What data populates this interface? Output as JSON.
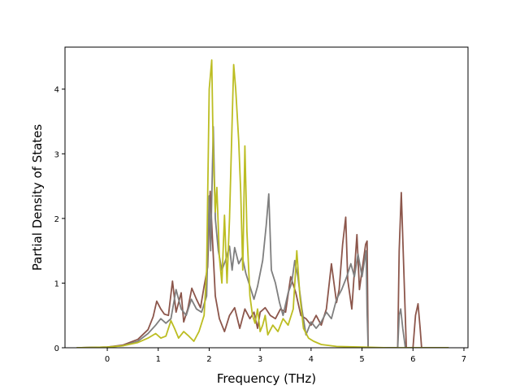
{
  "chart_data": {
    "type": "line",
    "title": "",
    "xlabel": "Frequency (THz)",
    "ylabel": "Partial Density of States",
    "xlim": [
      -0.83,
      7.08
    ],
    "ylim": [
      0,
      4.65
    ],
    "xticks": [
      0,
      1,
      2,
      3,
      4,
      5,
      6,
      7
    ],
    "yticks": [
      0,
      1,
      2,
      3,
      4
    ],
    "grid": false,
    "legend": "none",
    "series": [
      {
        "color": "#8c564b",
        "points": [
          [
            -0.6,
            0
          ],
          [
            0,
            0.01
          ],
          [
            0.3,
            0.04
          ],
          [
            0.6,
            0.13
          ],
          [
            0.8,
            0.28
          ],
          [
            0.9,
            0.48
          ],
          [
            0.97,
            0.72
          ],
          [
            1.05,
            0.6
          ],
          [
            1.12,
            0.52
          ],
          [
            1.2,
            0.5
          ],
          [
            1.28,
            1.03
          ],
          [
            1.35,
            0.55
          ],
          [
            1.45,
            0.85
          ],
          [
            1.5,
            0.4
          ],
          [
            1.58,
            0.6
          ],
          [
            1.66,
            0.92
          ],
          [
            1.75,
            0.75
          ],
          [
            1.83,
            0.62
          ],
          [
            1.9,
            0.95
          ],
          [
            1.97,
            1.25
          ],
          [
            2.02,
            2.42
          ],
          [
            2.07,
            1.6
          ],
          [
            2.12,
            0.8
          ],
          [
            2.2,
            0.45
          ],
          [
            2.3,
            0.25
          ],
          [
            2.4,
            0.5
          ],
          [
            2.5,
            0.62
          ],
          [
            2.6,
            0.3
          ],
          [
            2.7,
            0.6
          ],
          [
            2.8,
            0.45
          ],
          [
            2.88,
            0.55
          ],
          [
            2.95,
            0.3
          ],
          [
            3.0,
            0.55
          ],
          [
            3.1,
            0.62
          ],
          [
            3.2,
            0.5
          ],
          [
            3.3,
            0.45
          ],
          [
            3.4,
            0.6
          ],
          [
            3.5,
            0.55
          ],
          [
            3.6,
            1.1
          ],
          [
            3.7,
            0.85
          ],
          [
            3.8,
            0.5
          ],
          [
            3.9,
            0.45
          ],
          [
            4.0,
            0.35
          ],
          [
            4.1,
            0.5
          ],
          [
            4.2,
            0.35
          ],
          [
            4.3,
            0.6
          ],
          [
            4.4,
            1.3
          ],
          [
            4.5,
            0.7
          ],
          [
            4.55,
            0.9
          ],
          [
            4.62,
            1.6
          ],
          [
            4.68,
            2.02
          ],
          [
            4.72,
            1.05
          ],
          [
            4.8,
            0.6
          ],
          [
            4.9,
            1.75
          ],
          [
            4.95,
            0.9
          ],
          [
            5.0,
            1.2
          ],
          [
            5.07,
            1.6
          ],
          [
            5.1,
            1.65
          ],
          [
            5.12,
            0
          ],
          [
            5.7,
            0
          ],
          [
            5.73,
            1.5
          ],
          [
            5.77,
            2.4
          ],
          [
            5.82,
            1.2
          ],
          [
            5.87,
            0
          ],
          [
            6.0,
            0
          ],
          [
            6.05,
            0.5
          ],
          [
            6.1,
            0.68
          ],
          [
            6.14,
            0.3
          ],
          [
            6.17,
            0
          ],
          [
            6.7,
            0
          ]
        ]
      },
      {
        "color": "#7f7f7f",
        "points": [
          [
            -0.6,
            0
          ],
          [
            0,
            0.01
          ],
          [
            0.3,
            0.03
          ],
          [
            0.6,
            0.1
          ],
          [
            0.8,
            0.22
          ],
          [
            0.95,
            0.35
          ],
          [
            1.05,
            0.45
          ],
          [
            1.15,
            0.38
          ],
          [
            1.25,
            0.45
          ],
          [
            1.35,
            0.9
          ],
          [
            1.45,
            0.6
          ],
          [
            1.55,
            0.5
          ],
          [
            1.65,
            0.75
          ],
          [
            1.75,
            0.6
          ],
          [
            1.85,
            0.55
          ],
          [
            1.95,
            0.8
          ],
          [
            2.0,
            2.35
          ],
          [
            2.03,
            1.5
          ],
          [
            2.08,
            3.42
          ],
          [
            2.12,
            2.0
          ],
          [
            2.18,
            1.5
          ],
          [
            2.25,
            1.2
          ],
          [
            2.32,
            1.35
          ],
          [
            2.4,
            1.57
          ],
          [
            2.45,
            1.2
          ],
          [
            2.5,
            1.55
          ],
          [
            2.58,
            1.3
          ],
          [
            2.65,
            1.4
          ],
          [
            2.72,
            1.15
          ],
          [
            2.8,
            0.95
          ],
          [
            2.88,
            0.75
          ],
          [
            2.95,
            0.95
          ],
          [
            3.05,
            1.35
          ],
          [
            3.12,
            1.9
          ],
          [
            3.17,
            2.38
          ],
          [
            3.22,
            1.2
          ],
          [
            3.3,
            1.0
          ],
          [
            3.38,
            0.7
          ],
          [
            3.45,
            0.5
          ],
          [
            3.55,
            0.85
          ],
          [
            3.62,
            1.0
          ],
          [
            3.68,
            1.35
          ],
          [
            3.74,
            1.1
          ],
          [
            3.82,
            0.6
          ],
          [
            3.9,
            0.2
          ],
          [
            4.0,
            0.4
          ],
          [
            4.1,
            0.3
          ],
          [
            4.2,
            0.4
          ],
          [
            4.3,
            0.55
          ],
          [
            4.4,
            0.45
          ],
          [
            4.5,
            0.75
          ],
          [
            4.6,
            0.9
          ],
          [
            4.7,
            1.1
          ],
          [
            4.78,
            1.3
          ],
          [
            4.85,
            1.1
          ],
          [
            4.92,
            1.45
          ],
          [
            5.0,
            1.1
          ],
          [
            5.08,
            1.5
          ],
          [
            5.1,
            0.55
          ],
          [
            5.12,
            0
          ],
          [
            5.7,
            0
          ],
          [
            5.73,
            0.5
          ],
          [
            5.76,
            0.6
          ],
          [
            5.8,
            0.3
          ],
          [
            5.85,
            0
          ],
          [
            6.7,
            0
          ]
        ]
      },
      {
        "color": "#bcbd22",
        "points": [
          [
            -0.6,
            0
          ],
          [
            0,
            0.01
          ],
          [
            0.3,
            0.03
          ],
          [
            0.6,
            0.08
          ],
          [
            0.8,
            0.15
          ],
          [
            0.95,
            0.22
          ],
          [
            1.05,
            0.15
          ],
          [
            1.15,
            0.18
          ],
          [
            1.25,
            0.42
          ],
          [
            1.32,
            0.3
          ],
          [
            1.4,
            0.15
          ],
          [
            1.5,
            0.25
          ],
          [
            1.6,
            0.18
          ],
          [
            1.7,
            0.1
          ],
          [
            1.8,
            0.25
          ],
          [
            1.9,
            0.5
          ],
          [
            1.95,
            1.2
          ],
          [
            2.0,
            4.0
          ],
          [
            2.05,
            4.45
          ],
          [
            2.08,
            3.0
          ],
          [
            2.12,
            2.1
          ],
          [
            2.15,
            2.48
          ],
          [
            2.2,
            1.4
          ],
          [
            2.25,
            1.0
          ],
          [
            2.3,
            2.05
          ],
          [
            2.35,
            1.0
          ],
          [
            2.4,
            2.0
          ],
          [
            2.45,
            3.5
          ],
          [
            2.48,
            4.38
          ],
          [
            2.52,
            4.0
          ],
          [
            2.58,
            3.2
          ],
          [
            2.62,
            2.4
          ],
          [
            2.66,
            1.2
          ],
          [
            2.7,
            3.12
          ],
          [
            2.74,
            1.8
          ],
          [
            2.8,
            0.8
          ],
          [
            2.85,
            0.5
          ],
          [
            2.9,
            0.38
          ],
          [
            2.95,
            0.6
          ],
          [
            3.0,
            0.25
          ],
          [
            3.05,
            0.35
          ],
          [
            3.1,
            0.5
          ],
          [
            3.15,
            0.2
          ],
          [
            3.25,
            0.35
          ],
          [
            3.35,
            0.25
          ],
          [
            3.45,
            0.45
          ],
          [
            3.55,
            0.35
          ],
          [
            3.65,
            0.6
          ],
          [
            3.72,
            1.5
          ],
          [
            3.78,
            0.8
          ],
          [
            3.85,
            0.3
          ],
          [
            3.95,
            0.15
          ],
          [
            4.05,
            0.1
          ],
          [
            4.2,
            0.05
          ],
          [
            4.5,
            0.02
          ],
          [
            5.0,
            0.01
          ],
          [
            5.5,
            0
          ],
          [
            6.7,
            0
          ]
        ]
      }
    ]
  }
}
